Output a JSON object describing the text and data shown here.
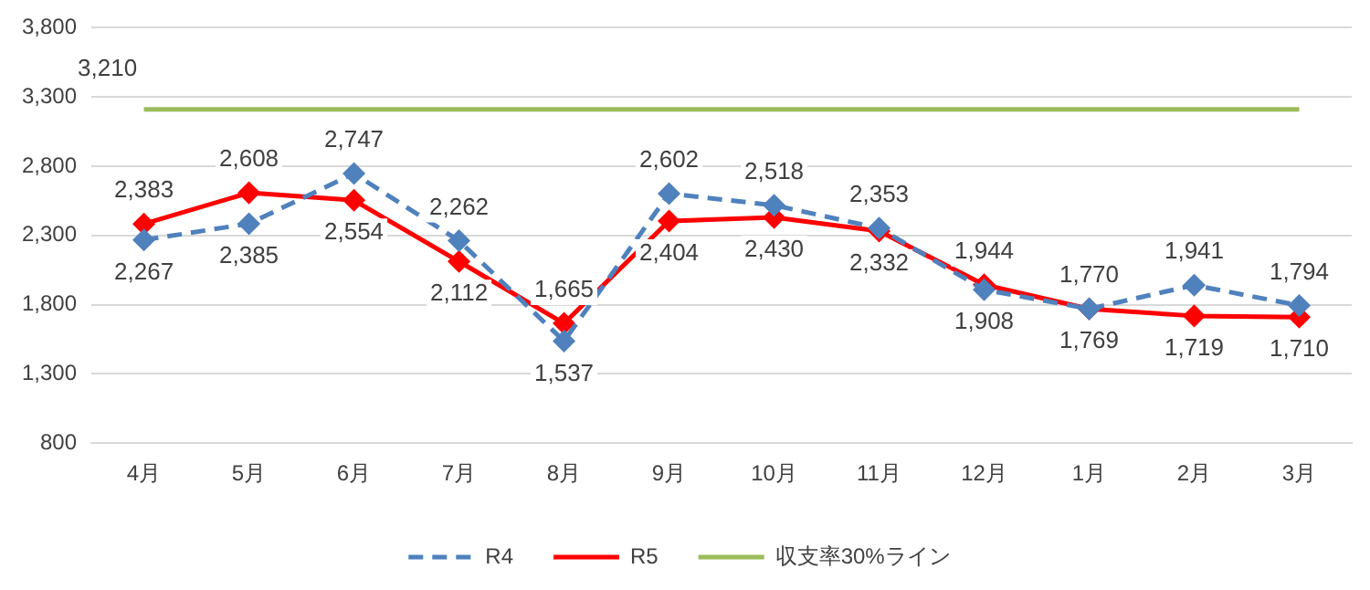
{
  "chart_data": {
    "type": "line",
    "categories": [
      "4月",
      "5月",
      "6月",
      "7月",
      "8月",
      "9月",
      "10月",
      "11月",
      "12月",
      "1月",
      "2月",
      "3月"
    ],
    "series": [
      {
        "name": "R4",
        "color": "#4f81bd",
        "line_style": "dashed",
        "marker": "diamond",
        "values": [
          2267,
          2385,
          2747,
          2262,
          1537,
          2602,
          2518,
          2353,
          1908,
          1770,
          1941,
          1794
        ],
        "value_labels": [
          "2,267",
          "2,385",
          "2,747",
          "2,262",
          "1,537",
          "2,602",
          "2,518",
          "2,353",
          "1,908",
          "1,770",
          "1,941",
          "1,794"
        ]
      },
      {
        "name": "R5",
        "color": "#ff0000",
        "line_style": "solid",
        "marker": "diamond",
        "values": [
          2383,
          2608,
          2554,
          2112,
          1665,
          2404,
          2430,
          2332,
          1944,
          1769,
          1719,
          1710
        ],
        "value_labels": [
          "2,383",
          "2,608",
          "2,554",
          "2,112",
          "1,665",
          "2,404",
          "2,430",
          "2,332",
          "1,944",
          "1,769",
          "1,719",
          "1,710"
        ]
      },
      {
        "name": "収支率30%ライン",
        "color": "#9bbb59",
        "line_style": "solid",
        "marker": "none",
        "values": [
          3210,
          3210,
          3210,
          3210,
          3210,
          3210,
          3210,
          3210,
          3210,
          3210,
          3210,
          3210
        ],
        "value_labels": [
          "3,210",
          null,
          null,
          null,
          null,
          null,
          null,
          null,
          null,
          null,
          null,
          null
        ]
      }
    ],
    "ylim": [
      800,
      3800
    ],
    "yticks": [
      {
        "value": 800,
        "label": "800"
      },
      {
        "value": 1300,
        "label": "1,300"
      },
      {
        "value": 1800,
        "label": "1,800"
      },
      {
        "value": 2300,
        "label": "2,300"
      },
      {
        "value": 2800,
        "label": "2,800"
      },
      {
        "value": 3300,
        "label": "3,300"
      },
      {
        "value": 3800,
        "label": "3,800"
      }
    ],
    "grid": "y",
    "legend": "bottom"
  }
}
